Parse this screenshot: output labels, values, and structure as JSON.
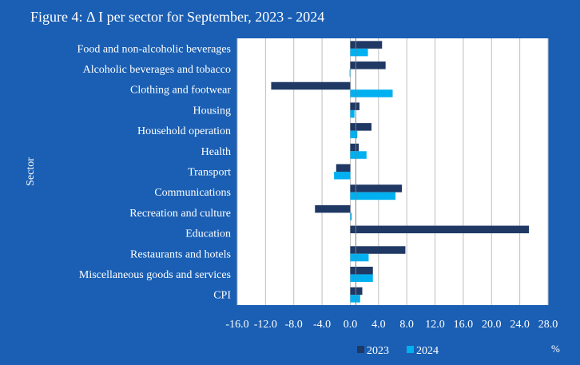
{
  "chart_data": {
    "type": "bar",
    "orientation": "horizontal",
    "title": "Figure 4: Δ I per sector for September, 2023 - 2024",
    "ylabel": "Sector",
    "xlabel": "%",
    "categories": [
      "Food and non-alcoholic beverages",
      "Alcoholic beverages and tobacco",
      "Clothing and footwear",
      "Housing",
      "Household operation",
      "Health",
      "Transport",
      "Communications",
      "Recreation and culture",
      "Education",
      "Restaurants and hotels",
      "Miscellaneous goods and services",
      "CPI"
    ],
    "series": [
      {
        "name": "2023",
        "color": "#1f3864",
        "values": [
          4.5,
          5.0,
          -11.2,
          1.3,
          3.0,
          1.2,
          -2.0,
          7.3,
          -5.0,
          25.3,
          7.8,
          3.2,
          1.7
        ]
      },
      {
        "name": "2024",
        "color": "#00b0f0",
        "values": [
          2.5,
          -0.1,
          6.0,
          0.6,
          1.0,
          2.3,
          -2.3,
          6.4,
          0.2,
          0.0,
          2.6,
          3.2,
          1.4
        ]
      }
    ],
    "xticks": [
      "-16.0",
      "-12.0",
      "-8.0",
      "-4.0",
      "0.0",
      "4.0",
      "8.0",
      "12.0",
      "16.0",
      "20.0",
      "24.0",
      "28.0"
    ],
    "xlim": [
      -16,
      28
    ],
    "grid": "vertical",
    "legend": "bottom"
  }
}
